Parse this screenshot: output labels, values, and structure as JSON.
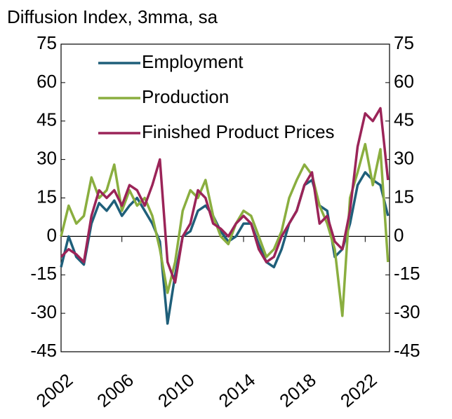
{
  "chart_data": {
    "type": "line",
    "title": "Diffusion Index, 3mma, sa",
    "x": [
      2002,
      2002.5,
      2003,
      2003.5,
      2004,
      2004.5,
      2005,
      2005.5,
      2006,
      2006.5,
      2007,
      2007.5,
      2008,
      2008.5,
      2009,
      2009.5,
      2010,
      2010.5,
      2011,
      2011.5,
      2012,
      2012.5,
      2013,
      2013.5,
      2014,
      2014.5,
      2015,
      2015.5,
      2016,
      2016.5,
      2017,
      2017.5,
      2018,
      2018.5,
      2019,
      2019.5,
      2020,
      2020.5,
      2021,
      2021.5,
      2022,
      2022.5,
      2023,
      2023.5
    ],
    "series": [
      {
        "name": "Employment",
        "color": "#1f5f7a",
        "values": [
          -12,
          0,
          -8,
          -11,
          5,
          13,
          10,
          14,
          8,
          12,
          15,
          10,
          5,
          -2,
          -34,
          -15,
          0,
          2,
          10,
          12,
          8,
          2,
          -2,
          0,
          5,
          5,
          -3,
          -10,
          -12,
          -5,
          5,
          10,
          20,
          22,
          12,
          10,
          -8,
          -5,
          5,
          20,
          25,
          22,
          20,
          8
        ]
      },
      {
        "name": "Production",
        "color": "#8aae3f",
        "values": [
          0,
          12,
          5,
          8,
          23,
          15,
          18,
          28,
          10,
          18,
          12,
          15,
          8,
          -5,
          -22,
          -10,
          10,
          18,
          15,
          22,
          8,
          0,
          -3,
          5,
          10,
          8,
          0,
          -8,
          -5,
          2,
          15,
          22,
          28,
          24,
          12,
          5,
          -5,
          -31,
          15,
          25,
          36,
          20,
          34,
          -10
        ]
      },
      {
        "name": "Finished Product Prices",
        "color": "#9b2458",
        "values": [
          -8,
          -5,
          -7,
          -10,
          8,
          18,
          15,
          18,
          12,
          20,
          18,
          12,
          20,
          30,
          -10,
          -18,
          0,
          5,
          18,
          15,
          5,
          3,
          0,
          5,
          8,
          5,
          -5,
          -10,
          -8,
          0,
          5,
          10,
          20,
          25,
          5,
          8,
          -2,
          -5,
          10,
          35,
          48,
          45,
          50,
          22
        ]
      }
    ],
    "xlim": [
      2002,
      2023.6
    ],
    "xticks": [
      2002,
      2006,
      2010,
      2014,
      2018,
      2022
    ],
    "ylim": [
      -45,
      75
    ],
    "yticks": [
      -45,
      -30,
      -15,
      0,
      15,
      30,
      45,
      60,
      75
    ],
    "y2lim": [
      -45,
      75
    ],
    "y2ticks": [
      -45,
      -30,
      -15,
      0,
      15,
      30,
      45,
      60,
      75
    ],
    "legend": "top-left"
  }
}
